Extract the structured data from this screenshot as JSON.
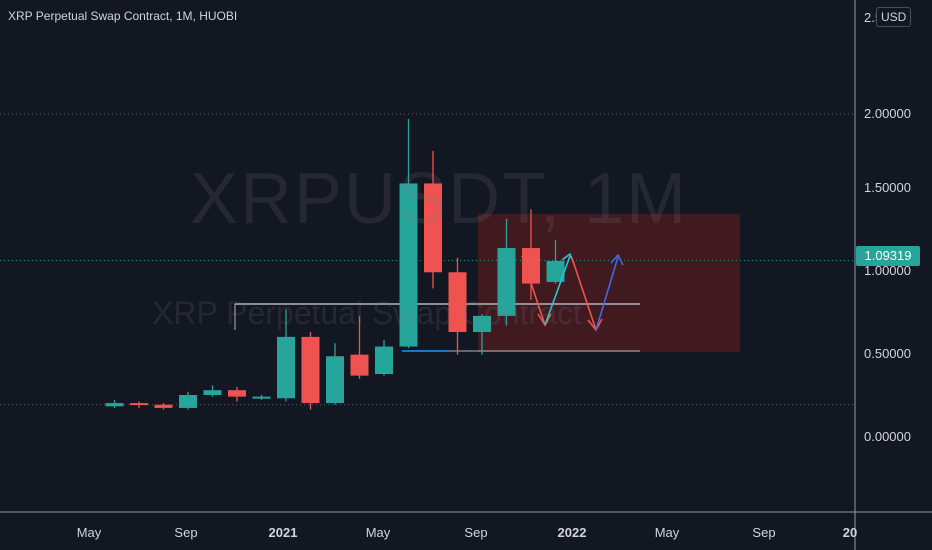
{
  "header": {
    "title": "XRP Perpetual Swap Contract, 1M, HUOBI",
    "currency_button": "USD"
  },
  "watermark": {
    "symbol": "XRPUSDT, 1M",
    "name": "XRP Perpetual Swap Contract"
  },
  "price_tag": "1.09319",
  "colors": {
    "background": "#131722",
    "up": "#26a69a",
    "down": "#ef5350",
    "grid_dotted": "#5d606b",
    "projection_box": "#7a2020"
  },
  "chart_data": {
    "type": "candlestick",
    "title": "XRP Perpetual Swap Contract, 1M, HUOBI",
    "timeframe": "1M",
    "exchange": "HUOBI",
    "currency": "USD",
    "ylim": [
      -0.1,
      2.1
    ],
    "y_ticks": [
      "0.00000",
      "0.50000",
      "1.00000",
      "1.50000",
      "2.00000",
      "2.5"
    ],
    "x_ticks": [
      "May",
      "Sep",
      "2021",
      "May",
      "Sep",
      "2022",
      "May",
      "Sep",
      "20"
    ],
    "last_price": 1.09319,
    "horizontal_levels": [
      2.0,
      1.09319,
      0.2
    ],
    "candles": [
      {
        "period": "2020-04",
        "open": 0.19,
        "high": 0.23,
        "low": 0.18,
        "close": 0.21
      },
      {
        "period": "2020-05",
        "open": 0.21,
        "high": 0.22,
        "low": 0.18,
        "close": 0.2
      },
      {
        "period": "2020-06",
        "open": 0.2,
        "high": 0.21,
        "low": 0.17,
        "close": 0.18
      },
      {
        "period": "2020-07",
        "open": 0.18,
        "high": 0.28,
        "low": 0.17,
        "close": 0.26
      },
      {
        "period": "2020-08",
        "open": 0.26,
        "high": 0.32,
        "low": 0.25,
        "close": 0.29
      },
      {
        "period": "2020-09",
        "open": 0.29,
        "high": 0.31,
        "low": 0.22,
        "close": 0.25
      },
      {
        "period": "2020-10",
        "open": 0.24,
        "high": 0.26,
        "low": 0.23,
        "close": 0.25
      },
      {
        "period": "2020-11",
        "open": 0.24,
        "high": 0.79,
        "low": 0.22,
        "close": 0.62
      },
      {
        "period": "2020-12",
        "open": 0.62,
        "high": 0.65,
        "low": 0.17,
        "close": 0.21
      },
      {
        "period": "2021-01",
        "open": 0.21,
        "high": 0.58,
        "low": 0.2,
        "close": 0.5
      },
      {
        "period": "2021-02",
        "open": 0.51,
        "high": 0.75,
        "low": 0.36,
        "close": 0.38
      },
      {
        "period": "2021-03",
        "open": 0.39,
        "high": 0.6,
        "low": 0.38,
        "close": 0.56
      },
      {
        "period": "2021-04",
        "open": 0.56,
        "high": 1.97,
        "low": 0.55,
        "close": 1.57
      },
      {
        "period": "2021-05",
        "open": 1.57,
        "high": 1.77,
        "low": 0.92,
        "close": 1.02
      },
      {
        "period": "2021-06",
        "open": 1.02,
        "high": 1.11,
        "low": 0.51,
        "close": 0.65
      },
      {
        "period": "2021-07",
        "open": 0.65,
        "high": 0.76,
        "low": 0.51,
        "close": 0.75
      },
      {
        "period": "2021-08",
        "open": 0.75,
        "high": 1.35,
        "low": 0.69,
        "close": 1.17
      },
      {
        "period": "2021-09",
        "open": 1.17,
        "high": 1.41,
        "low": 0.85,
        "close": 0.95
      },
      {
        "period": "2021-10",
        "open": 0.96,
        "high": 1.22,
        "low": 0.95,
        "close": 1.09
      }
    ]
  }
}
